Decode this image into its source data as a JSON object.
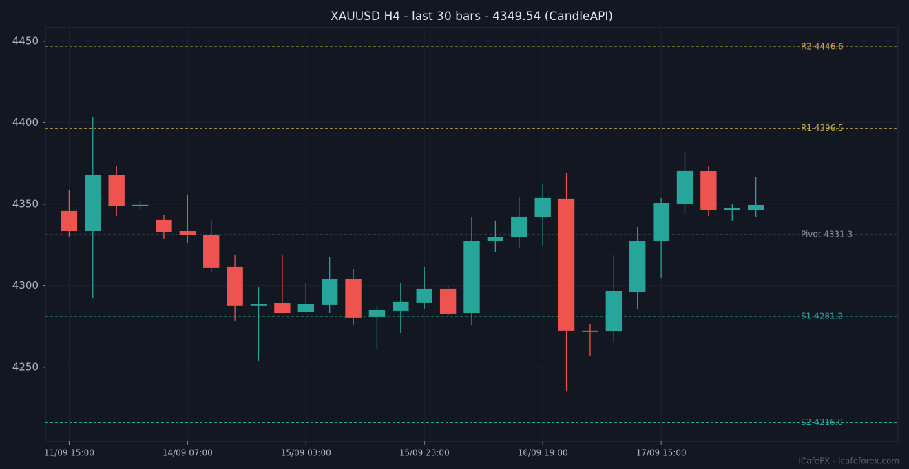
{
  "chart_data": {
    "type": "candlestick",
    "title": "XAUUSD H4 - last 30 bars - 4349.54 (CandleAPI)",
    "watermark": "iCafeFX - icafeforex.com",
    "categories": [
      "11/09 15:00",
      null,
      null,
      null,
      null,
      "14/09 07:00",
      null,
      null,
      null,
      null,
      "15/09 03:00",
      null,
      null,
      null,
      null,
      "15/09 23:00",
      null,
      null,
      null,
      null,
      "16/09 19:00",
      null,
      null,
      null,
      null,
      "17/09 15:00",
      null,
      null,
      null,
      null
    ],
    "open": [
      4345.8,
      4333.5,
      4367.7,
      4348.7,
      4340.3,
      4333.5,
      4331.0,
      4311.6,
      4287.6,
      4289.2,
      4283.8,
      4288.4,
      4304.4,
      4280.8,
      4284.6,
      4289.7,
      4298.1,
      4283.3,
      4327.2,
      4329.7,
      4342.0,
      4353.4,
      4272.4,
      4271.9,
      4296.4,
      4327.2,
      4350.0,
      4370.3,
      4346.6,
      4346.2
    ],
    "high": [
      4358.4,
      4403.6,
      4373.6,
      4352.1,
      4343.2,
      4355.9,
      4339.9,
      4318.8,
      4298.9,
      4318.8,
      4301.5,
      4317.9,
      4310.3,
      4287.6,
      4301.5,
      4311.6,
      4299.8,
      4342.0,
      4339.9,
      4354.2,
      4362.7,
      4369.0,
      4276.6,
      4318.8,
      4336.1,
      4353.8,
      4382.1,
      4373.2,
      4350.0,
      4366.5
    ],
    "low": [
      4330.2,
      4292.2,
      4342.8,
      4346.2,
      4328.9,
      4326.4,
      4308.2,
      4278.3,
      4253.8,
      4283.0,
      4283.5,
      4283.3,
      4276.2,
      4261.4,
      4271.1,
      4285.9,
      4281.2,
      4275.7,
      4320.5,
      4323.0,
      4324.3,
      4235.2,
      4257.2,
      4265.6,
      4285.4,
      4304.9,
      4344.1,
      4342.8,
      4339.9,
      4342.4
    ],
    "close": [
      4333.5,
      4367.7,
      4348.7,
      4349.6,
      4333.1,
      4331.0,
      4311.2,
      4287.6,
      4288.8,
      4283.3,
      4288.8,
      4304.4,
      4280.4,
      4285.0,
      4290.1,
      4298.1,
      4282.9,
      4327.6,
      4329.7,
      4342.4,
      4353.8,
      4272.4,
      4271.9,
      4296.8,
      4327.6,
      4350.8,
      4370.7,
      4346.6,
      4347.5,
      4349.54
    ],
    "up_color": "#26a69a",
    "down_color": "#ef5350",
    "ylim": [
      4204.4,
      4458.4
    ],
    "yticks": [
      4250,
      4300,
      4350,
      4400,
      4450
    ],
    "grid": true,
    "levels": [
      {
        "label": "R2 4446.6",
        "value": 4446.6,
        "color": "#c9a84c"
      },
      {
        "label": "R1 4396.5",
        "value": 4396.5,
        "color": "#c9a84c"
      },
      {
        "label": "Pivot 4331.3",
        "value": 4331.3,
        "color": "#8a8e99"
      },
      {
        "label": "S1 4281.2",
        "value": 4281.2,
        "color": "#26a69a"
      },
      {
        "label": "S2 4216.0",
        "value": 4216.0,
        "color": "#26a69a"
      }
    ]
  }
}
